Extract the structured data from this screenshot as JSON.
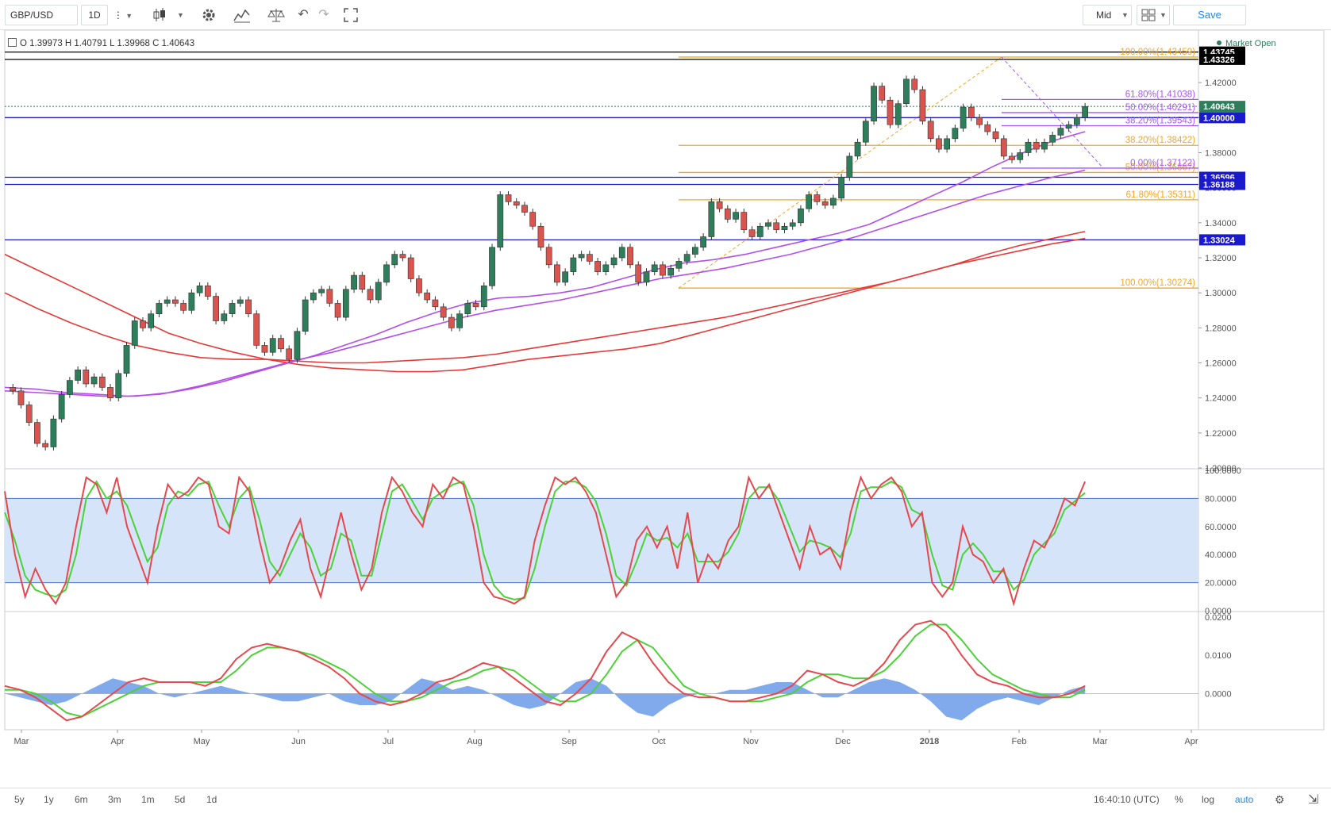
{
  "toolbar": {
    "symbol": "GBP/USD",
    "interval": "1D",
    "price_type": "Mid",
    "save_label": "Save"
  },
  "legend": {
    "text": "O 1.39973 H 1.40791 L 1.39968 C 1.40643",
    "market_status": "Market Open"
  },
  "bottom_bar": {
    "ranges": [
      "5y",
      "1y",
      "6m",
      "3m",
      "1m",
      "5d",
      "1d"
    ],
    "time": "16:40:10 (UTC)",
    "percent": "%",
    "log": "log",
    "auto": "auto"
  },
  "colors": {
    "up": "#2e7d5b",
    "down": "#d9534f",
    "fib_orange": "#f5a623",
    "fib_purple": "#a855f7",
    "level_blue": "#1a1acc",
    "ma_red": "#e53935",
    "ma_purple": "#b34ee6",
    "stoch_red": "#e5484d",
    "stoch_green": "#4cd137",
    "macd_fill": "#6a9be8"
  },
  "chart_data": {
    "type": "line",
    "x_ticks": [
      "Mar",
      "Apr",
      "May",
      "Jun",
      "Jul",
      "Aug",
      "Sep",
      "Oct",
      "Nov",
      "Dec",
      "2018",
      "Feb",
      "Mar",
      "Apr"
    ],
    "price_axis_ticks": [
      "1.42000",
      "1.40000",
      "1.38000",
      "1.36000",
      "1.34000",
      "1.32000",
      "1.30000",
      "1.28000",
      "1.26000",
      "1.24000",
      "1.22000",
      "1.20000"
    ],
    "ylim": [
      1.2,
      1.44
    ],
    "price_path": [
      1.246,
      1.244,
      1.236,
      1.226,
      1.214,
      1.212,
      1.228,
      1.242,
      1.25,
      1.256,
      1.248,
      1.252,
      1.246,
      1.24,
      1.254,
      1.27,
      1.284,
      1.28,
      1.288,
      1.294,
      1.296,
      1.294,
      1.29,
      1.3,
      1.304,
      1.298,
      1.284,
      1.288,
      1.294,
      1.296,
      1.288,
      1.27,
      1.266,
      1.274,
      1.268,
      1.262,
      1.278,
      1.296,
      1.3,
      1.302,
      1.294,
      1.286,
      1.302,
      1.31,
      1.302,
      1.296,
      1.306,
      1.316,
      1.322,
      1.32,
      1.308,
      1.3,
      1.296,
      1.292,
      1.286,
      1.28,
      1.288,
      1.294,
      1.292,
      1.304,
      1.326,
      1.356,
      1.352,
      1.35,
      1.346,
      1.338,
      1.326,
      1.316,
      1.306,
      1.312,
      1.32,
      1.322,
      1.318,
      1.312,
      1.316,
      1.32,
      1.326,
      1.316,
      1.306,
      1.312,
      1.316,
      1.31,
      1.314,
      1.318,
      1.322,
      1.326,
      1.332,
      1.352,
      1.348,
      1.342,
      1.346,
      1.336,
      1.332,
      1.338,
      1.34,
      1.336,
      1.338,
      1.34,
      1.348,
      1.356,
      1.352,
      1.35,
      1.354,
      1.366,
      1.378,
      1.386,
      1.398,
      1.418,
      1.41,
      1.396,
      1.408,
      1.422,
      1.416,
      1.398,
      1.388,
      1.382,
      1.388,
      1.394,
      1.406,
      1.4,
      1.396,
      1.392,
      1.388,
      1.378,
      1.376,
      1.38,
      1.386,
      1.382,
      1.386,
      1.39,
      1.394,
      1.396,
      1.4,
      1.4064
    ],
    "ma_red_1": [
      1.322,
      1.313,
      1.304,
      1.295,
      1.286,
      1.277,
      1.271,
      1.266,
      1.262,
      1.259,
      1.257,
      1.256,
      1.255,
      1.255,
      1.256,
      1.259,
      1.262,
      1.264,
      1.266,
      1.268,
      1.271,
      1.276,
      1.281,
      1.286,
      1.291,
      1.296,
      1.301,
      1.306,
      1.311,
      1.316,
      1.322,
      1.327,
      1.331,
      1.335
    ],
    "ma_red_2": [
      1.3,
      1.291,
      1.283,
      1.276,
      1.27,
      1.266,
      1.263,
      1.262,
      1.262,
      1.261,
      1.26,
      1.26,
      1.261,
      1.262,
      1.263,
      1.265,
      1.268,
      1.271,
      1.274,
      1.277,
      1.28,
      1.283,
      1.286,
      1.29,
      1.294,
      1.298,
      1.302,
      1.306,
      1.311,
      1.316,
      1.32,
      1.324,
      1.328,
      1.331
    ],
    "ma_purple_1": [
      1.246,
      1.245,
      1.243,
      1.242,
      1.241,
      1.242,
      1.245,
      1.249,
      1.254,
      1.259,
      1.264,
      1.27,
      1.276,
      1.283,
      1.289,
      1.294,
      1.297,
      1.298,
      1.3,
      1.303,
      1.308,
      1.313,
      1.317,
      1.319,
      1.322,
      1.326,
      1.33,
      1.334,
      1.339,
      1.347,
      1.355,
      1.363,
      1.372,
      1.38,
      1.387,
      1.392
    ],
    "ma_purple_2": [
      1.244,
      1.243,
      1.242,
      1.241,
      1.241,
      1.243,
      1.247,
      1.252,
      1.257,
      1.262,
      1.266,
      1.271,
      1.276,
      1.281,
      1.286,
      1.29,
      1.293,
      1.296,
      1.3,
      1.304,
      1.308,
      1.311,
      1.314,
      1.318,
      1.322,
      1.327,
      1.332,
      1.338,
      1.344,
      1.35,
      1.356,
      1.361,
      1.366,
      1.37
    ],
    "horizontal_levels": [
      {
        "value": 1.43745,
        "label": "1.43745",
        "color": "#000000"
      },
      {
        "value": 1.43326,
        "label": "1.43326",
        "color": "#000000"
      },
      {
        "value": 1.40643,
        "label": "1.40643",
        "color": "#2e7d5b"
      },
      {
        "value": 1.4,
        "label": "1.40000",
        "color": "#1a1acc"
      },
      {
        "value": 1.36596,
        "label": "1.36596",
        "color": "#1a1acc"
      },
      {
        "value": 1.36188,
        "label": "1.36188",
        "color": "#1a1acc"
      },
      {
        "value": 1.33024,
        "label": "1.33024",
        "color": "#1a1acc"
      }
    ],
    "fib_orange": [
      {
        "label": "100.00%(1.43459)",
        "value": 1.4346
      },
      {
        "label": "61.80%(1.35311)",
        "value": 1.3531
      },
      {
        "label": "38.20%(1.38422)",
        "value": 1.3842
      },
      {
        "label": "50.00%(1.36867)",
        "value": 1.3687
      },
      {
        "label": "100.00%(1.30274)",
        "value": 1.3027
      }
    ],
    "fib_purple": [
      {
        "label": "61.80%(1.41038)",
        "value": 1.4104
      },
      {
        "label": "50.00%(1.40291)",
        "value": 1.4029
      },
      {
        "label": "38.20%(1.39543)",
        "value": 1.3954
      },
      {
        "label": "0.00%(1.37122)",
        "value": 1.3712
      }
    ],
    "stoch_ticks": [
      "100.0000",
      "80.0000",
      "60.0000",
      "40.0000",
      "20.0000",
      "0.0000"
    ],
    "stoch_ylim": [
      0,
      100
    ],
    "stoch_k": [
      85,
      40,
      10,
      30,
      15,
      5,
      20,
      60,
      95,
      90,
      70,
      95,
      60,
      40,
      20,
      60,
      90,
      80,
      85,
      95,
      90,
      60,
      55,
      95,
      85,
      50,
      20,
      30,
      50,
      65,
      30,
      10,
      40,
      70,
      40,
      15,
      30,
      70,
      95,
      85,
      70,
      60,
      90,
      80,
      95,
      90,
      60,
      20,
      10,
      8,
      5,
      10,
      50,
      75,
      95,
      90,
      95,
      85,
      70,
      40,
      10,
      20,
      50,
      60,
      45,
      60,
      30,
      70,
      20,
      40,
      30,
      50,
      60,
      95,
      80,
      90,
      70,
      50,
      30,
      60,
      40,
      45,
      30,
      70,
      95,
      80,
      90,
      95,
      85,
      60,
      70,
      20,
      10,
      20,
      60,
      40,
      35,
      20,
      30,
      5,
      30,
      50,
      45,
      60,
      80,
      75,
      92
    ],
    "stoch_d": [
      70,
      50,
      25,
      15,
      12,
      10,
      15,
      40,
      80,
      92,
      80,
      85,
      75,
      55,
      35,
      45,
      75,
      85,
      82,
      90,
      92,
      75,
      60,
      80,
      88,
      65,
      35,
      25,
      40,
      55,
      45,
      25,
      30,
      55,
      50,
      25,
      25,
      55,
      85,
      90,
      78,
      65,
      80,
      85,
      90,
      92,
      75,
      40,
      18,
      10,
      8,
      9,
      30,
      60,
      85,
      92,
      92,
      88,
      78,
      55,
      25,
      18,
      35,
      55,
      50,
      52,
      45,
      55,
      35,
      35,
      35,
      42,
      55,
      80,
      88,
      88,
      78,
      60,
      42,
      50,
      48,
      45,
      38,
      55,
      85,
      88,
      88,
      92,
      88,
      72,
      68,
      40,
      18,
      15,
      40,
      48,
      40,
      28,
      28,
      15,
      22,
      40,
      48,
      55,
      72,
      78,
      84
    ],
    "macd_ticks": [
      "0.0200",
      "0.0100",
      "0.0000"
    ],
    "macd_ylim": [
      -0.009,
      0.021
    ],
    "macd_line": [
      0.002,
      0.001,
      -0.001,
      -0.004,
      -0.007,
      -0.006,
      -0.003,
      0.0,
      0.003,
      0.004,
      0.003,
      0.003,
      0.003,
      0.002,
      0.004,
      0.009,
      0.012,
      0.013,
      0.012,
      0.011,
      0.009,
      0.007,
      0.004,
      0.0,
      -0.002,
      -0.003,
      -0.002,
      0.0,
      0.003,
      0.004,
      0.006,
      0.008,
      0.007,
      0.004,
      0.001,
      -0.002,
      -0.003,
      0.0,
      0.004,
      0.011,
      0.016,
      0.014,
      0.008,
      0.003,
      0.0,
      -0.001,
      -0.001,
      -0.002,
      -0.002,
      -0.001,
      0.0,
      0.002,
      0.006,
      0.005,
      0.003,
      0.002,
      0.004,
      0.008,
      0.014,
      0.018,
      0.019,
      0.016,
      0.01,
      0.005,
      0.003,
      0.002,
      0.0,
      -0.001,
      -0.001,
      0.0,
      0.002
    ],
    "macd_signal": [
      0.001,
      0.001,
      0.0,
      -0.002,
      -0.005,
      -0.006,
      -0.004,
      -0.002,
      0.0,
      0.002,
      0.003,
      0.003,
      0.003,
      0.003,
      0.003,
      0.006,
      0.01,
      0.012,
      0.012,
      0.011,
      0.01,
      0.008,
      0.006,
      0.003,
      0.0,
      -0.002,
      -0.002,
      -0.001,
      0.001,
      0.003,
      0.004,
      0.006,
      0.007,
      0.006,
      0.003,
      0.0,
      -0.002,
      -0.002,
      0.0,
      0.005,
      0.011,
      0.014,
      0.012,
      0.007,
      0.002,
      0.0,
      -0.001,
      -0.002,
      -0.002,
      -0.002,
      -0.001,
      0.0,
      0.003,
      0.005,
      0.005,
      0.004,
      0.004,
      0.006,
      0.01,
      0.015,
      0.018,
      0.018,
      0.014,
      0.009,
      0.005,
      0.003,
      0.001,
      0.0,
      -0.001,
      -0.001,
      0.001
    ],
    "macd_histogram": [
      0.0,
      -0.001,
      -0.002,
      -0.003,
      -0.002,
      0.0,
      0.002,
      0.004,
      0.003,
      0.002,
      0.0,
      -0.001,
      0.0,
      0.001,
      0.002,
      0.001,
      0.0,
      -0.001,
      -0.002,
      -0.002,
      -0.001,
      0.0,
      -0.002,
      -0.003,
      -0.003,
      -0.002,
      0.001,
      0.004,
      0.003,
      0.001,
      0.002,
      0.001,
      -0.001,
      -0.003,
      -0.004,
      -0.003,
      0.0,
      0.003,
      0.004,
      0.002,
      -0.002,
      -0.005,
      -0.006,
      -0.003,
      -0.001,
      0.0,
      0.0,
      0.001,
      0.001,
      0.002,
      0.003,
      0.003,
      0.001,
      -0.001,
      -0.001,
      0.001,
      0.003,
      0.004,
      0.003,
      0.001,
      -0.002,
      -0.006,
      -0.007,
      -0.004,
      -0.002,
      -0.001,
      -0.002,
      -0.003,
      -0.001,
      0.001,
      0.002
    ]
  }
}
